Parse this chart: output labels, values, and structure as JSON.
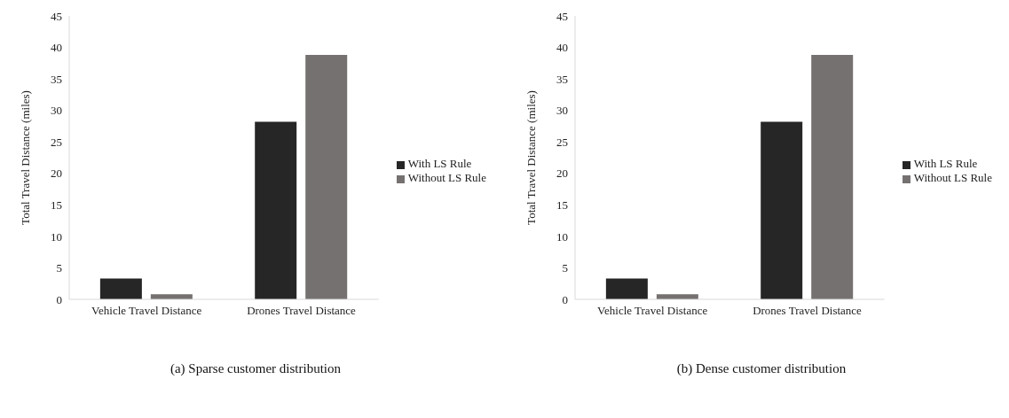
{
  "chart_data": [
    {
      "type": "bar",
      "ylabel": "Total Travel Distance (miles)",
      "categories": [
        "Vehicle Travel Distance",
        "Drones Travel Distance"
      ],
      "series": [
        {
          "name": "With LS Rule",
          "color": "#262626",
          "values": [
            3.3,
            28.2
          ]
        },
        {
          "name": "Without LS Rule",
          "color": "#767171",
          "values": [
            0.8,
            38.8
          ]
        }
      ],
      "ylim": [
        0,
        45
      ],
      "yticks": [
        0,
        5,
        10,
        15,
        20,
        25,
        30,
        35,
        40,
        45
      ],
      "grid": false,
      "legend": "right",
      "annotations": [
        "(a)   Sparse customer distribution"
      ]
    },
    {
      "type": "bar",
      "ylabel": "Total Travel Distance (miles)",
      "categories": [
        "Vehicle Travel Distance",
        "Drones Travel Distance"
      ],
      "series": [
        {
          "name": "With LS Rule",
          "color": "#262626",
          "values": [
            3.3,
            28.2
          ]
        },
        {
          "name": "Without LS Rule",
          "color": "#767171",
          "values": [
            0.8,
            38.8
          ]
        }
      ],
      "ylim": [
        0,
        45
      ],
      "yticks": [
        0,
        5,
        10,
        15,
        20,
        25,
        30,
        35,
        40,
        45
      ],
      "grid": false,
      "legend": "right",
      "annotations": [
        "(b)   Dense customer distribution"
      ]
    }
  ]
}
